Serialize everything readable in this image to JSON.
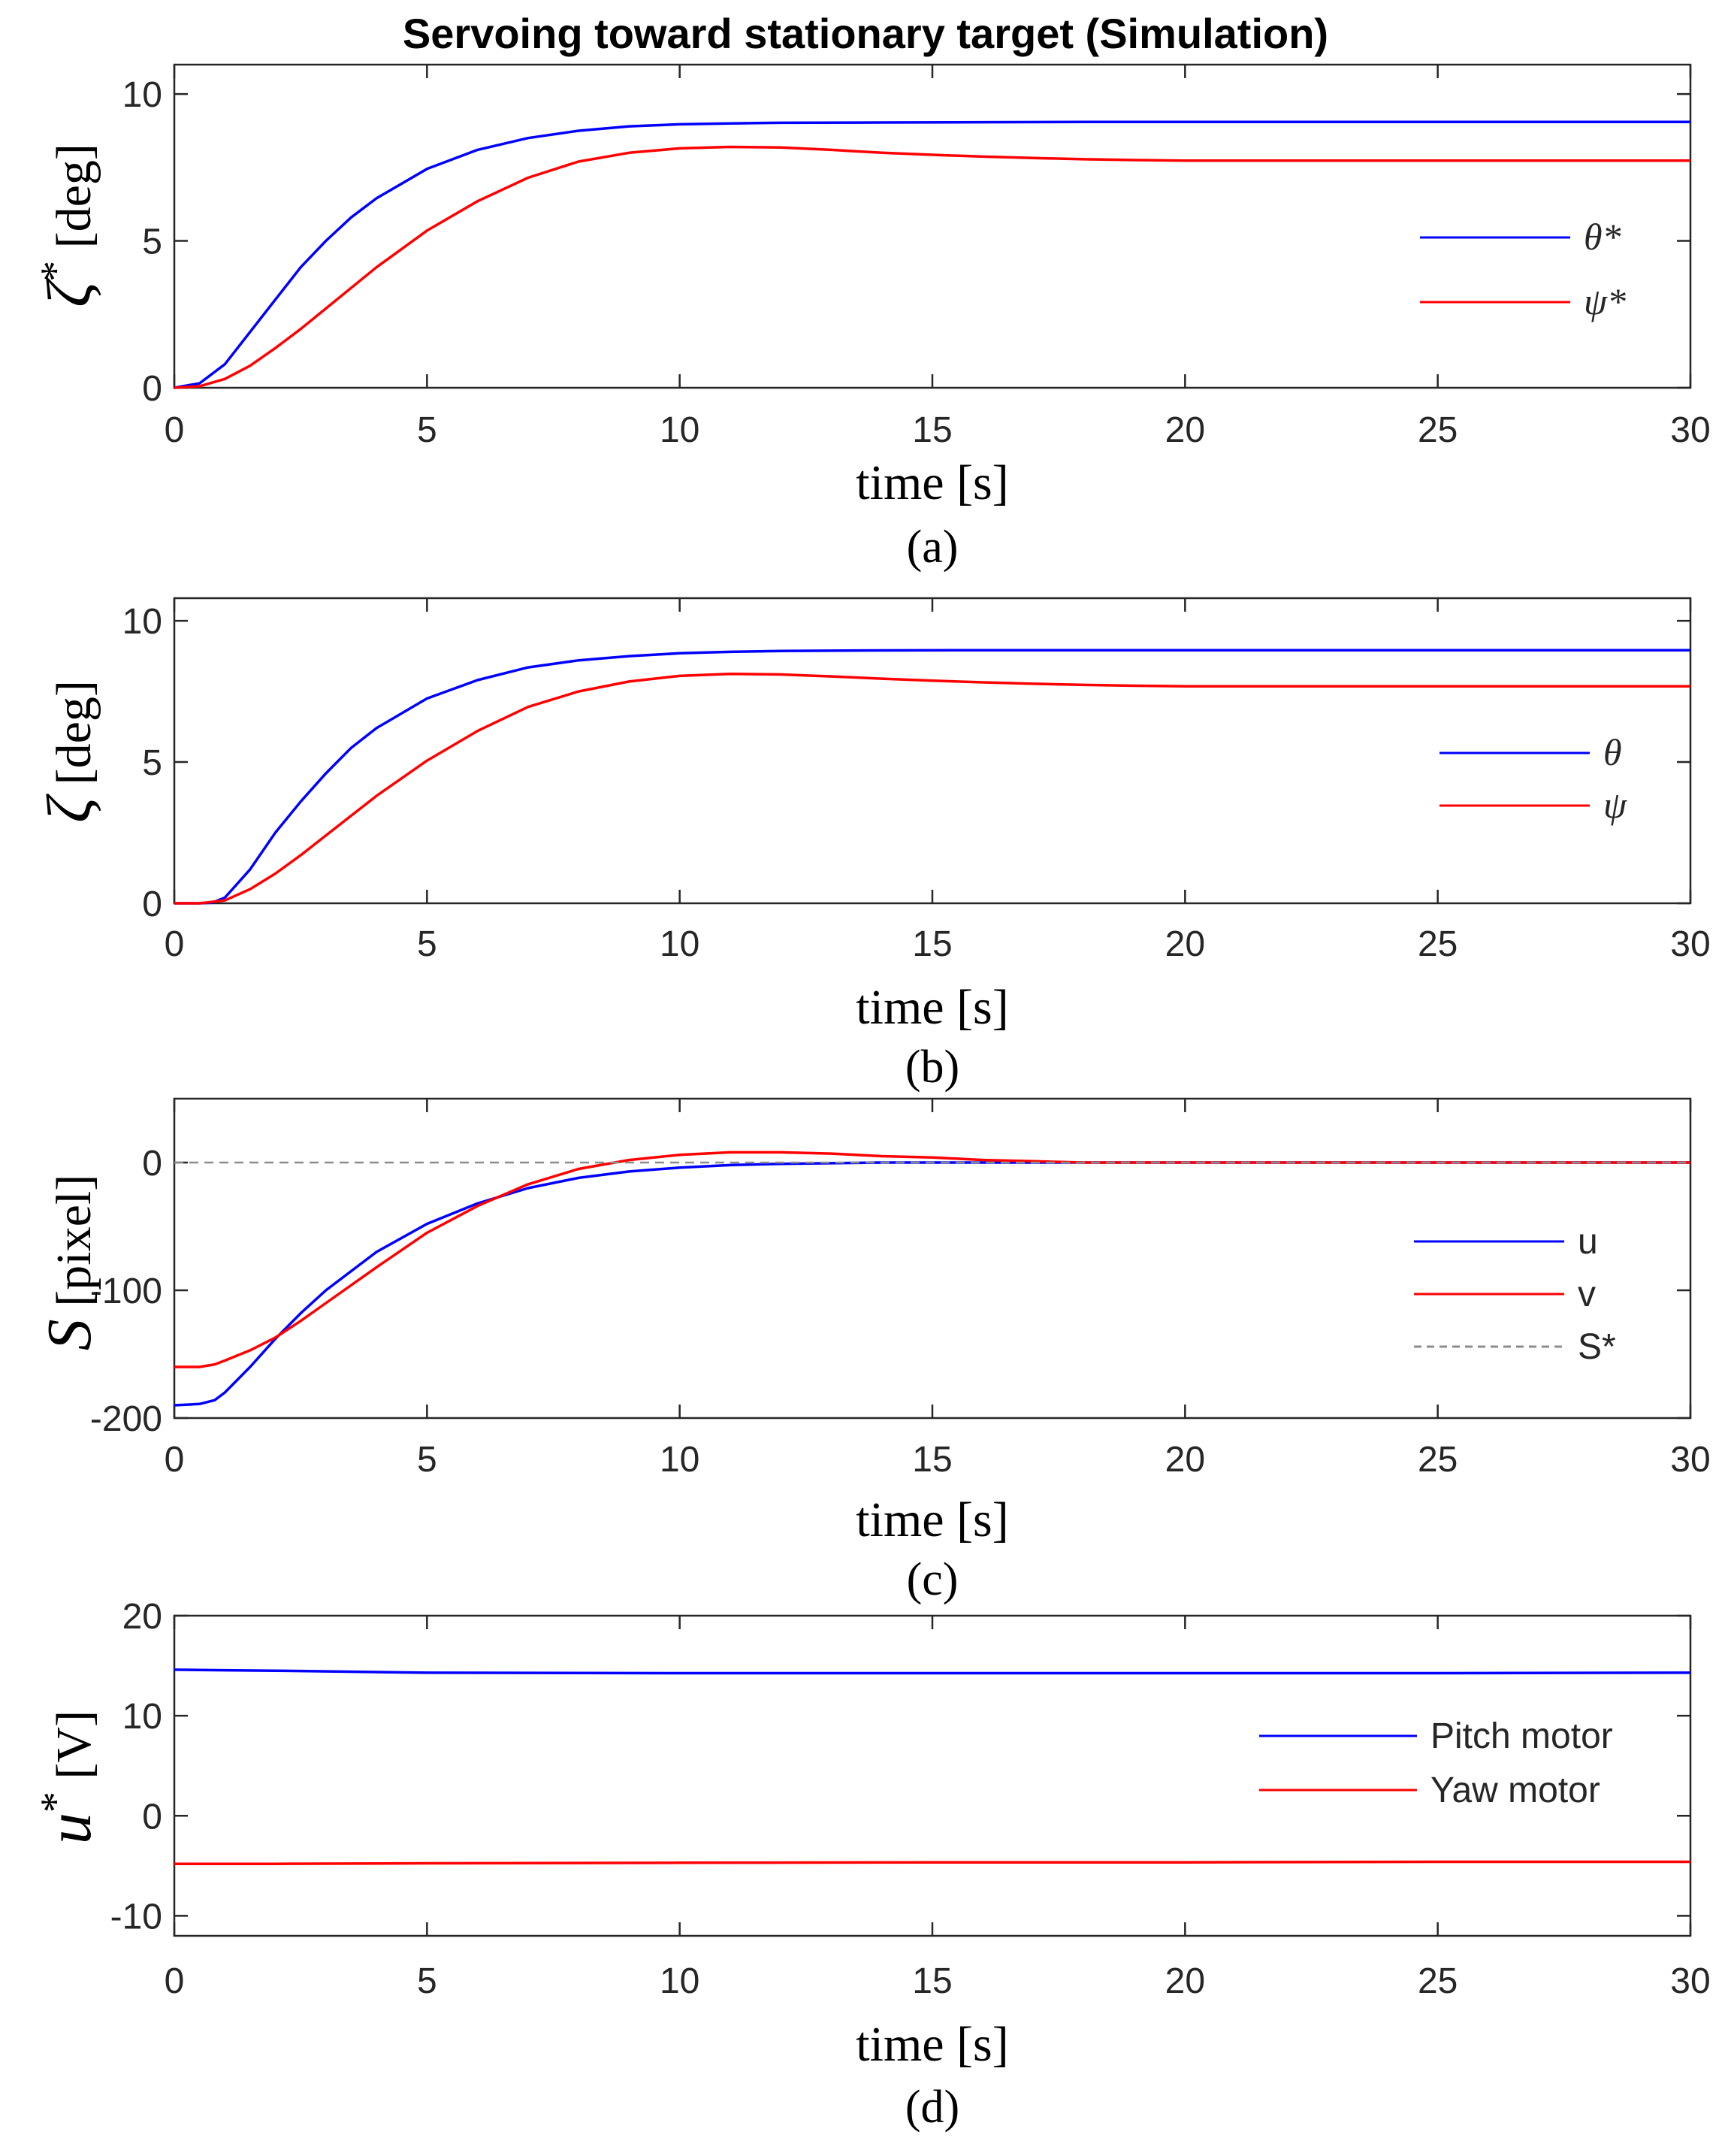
{
  "figure_title": "Servoing toward stationary target (Simulation)",
  "colors": {
    "blue": "#0000ff",
    "red": "#ff0000",
    "gray": "#8c8c8c",
    "axis": "#262626"
  },
  "chart_data": [
    {
      "id": "a",
      "type": "line",
      "caption": "(a)",
      "xlabel": "time [s]",
      "ylabel_symbol": "ζ",
      "ylabel_sup": "*",
      "ylabel_unit": "[deg]",
      "xlim": [
        0,
        30
      ],
      "ylim": [
        0,
        11
      ],
      "xticks": [
        0,
        5,
        10,
        15,
        20,
        25,
        30
      ],
      "xtick_labels": [
        "0",
        "5",
        "10",
        "15",
        "20",
        "25",
        "30"
      ],
      "yticks": [
        0,
        5,
        10
      ],
      "ytick_labels": [
        "0",
        "5",
        "10"
      ],
      "legend_pos": "right",
      "series": [
        {
          "name": "θ*",
          "color": "blue",
          "x": [
            0,
            0.5,
            1,
            1.5,
            2,
            2.5,
            3,
            3.5,
            4,
            5,
            6,
            7,
            8,
            9,
            10,
            11,
            12,
            14,
            16,
            18,
            20,
            25,
            30
          ],
          "y": [
            0,
            0.15,
            0.8,
            1.9,
            3.0,
            4.1,
            5.0,
            5.8,
            6.45,
            7.45,
            8.1,
            8.5,
            8.75,
            8.9,
            8.97,
            9.0,
            9.02,
            9.03,
            9.04,
            9.05,
            9.05,
            9.05,
            9.05
          ]
        },
        {
          "name": "ψ*",
          "color": "red",
          "x": [
            0,
            0.5,
            1,
            1.5,
            2,
            2.5,
            3,
            4,
            5,
            6,
            7,
            8,
            9,
            10,
            11,
            12,
            13,
            14,
            15,
            16,
            17,
            18,
            19,
            20,
            25,
            30
          ],
          "y": [
            0,
            0.05,
            0.3,
            0.75,
            1.35,
            2.0,
            2.7,
            4.1,
            5.35,
            6.35,
            7.15,
            7.7,
            8.0,
            8.15,
            8.2,
            8.18,
            8.1,
            8.0,
            7.93,
            7.87,
            7.82,
            7.78,
            7.75,
            7.73,
            7.73,
            7.73
          ]
        }
      ]
    },
    {
      "id": "b",
      "type": "line",
      "caption": "(b)",
      "xlabel": "time [s]",
      "ylabel_symbol": "ζ",
      "ylabel_sup": "",
      "ylabel_unit": "[deg]",
      "xlim": [
        0,
        30
      ],
      "ylim": [
        0,
        10.8
      ],
      "xticks": [
        0,
        5,
        10,
        15,
        20,
        25,
        30
      ],
      "xtick_labels": [
        "0",
        "5",
        "10",
        "15",
        "20",
        "25",
        "30"
      ],
      "yticks": [
        0,
        5,
        10
      ],
      "ytick_labels": [
        "0",
        "5",
        "10"
      ],
      "legend_pos": "right",
      "series": [
        {
          "name": "θ",
          "color": "blue",
          "x": [
            0,
            0.5,
            0.75,
            1,
            1.5,
            2,
            2.5,
            3,
            3.5,
            4,
            5,
            6,
            7,
            8,
            9,
            10,
            11,
            12,
            14,
            16,
            18,
            20,
            25,
            30
          ],
          "y": [
            0,
            0,
            0.02,
            0.2,
            1.2,
            2.5,
            3.6,
            4.6,
            5.5,
            6.2,
            7.25,
            7.9,
            8.35,
            8.6,
            8.75,
            8.85,
            8.9,
            8.93,
            8.95,
            8.96,
            8.96,
            8.96,
            8.96,
            8.96
          ]
        },
        {
          "name": "ψ",
          "color": "red",
          "x": [
            0,
            0.5,
            1,
            1.5,
            2,
            2.5,
            3,
            4,
            5,
            6,
            7,
            8,
            9,
            10,
            11,
            12,
            13,
            14,
            15,
            16,
            17,
            18,
            19,
            20,
            25,
            30
          ],
          "y": [
            0,
            0,
            0.1,
            0.5,
            1.05,
            1.7,
            2.4,
            3.8,
            5.05,
            6.1,
            6.95,
            7.5,
            7.85,
            8.05,
            8.12,
            8.1,
            8.03,
            7.95,
            7.88,
            7.82,
            7.77,
            7.73,
            7.7,
            7.68,
            7.68,
            7.68
          ]
        }
      ]
    },
    {
      "id": "c",
      "type": "line",
      "caption": "(c)",
      "xlabel": "time [s]",
      "ylabel_symbol": "S",
      "ylabel_sup": "",
      "ylabel_unit": "[pixel]",
      "xlim": [
        0,
        30
      ],
      "ylim": [
        -200,
        50
      ],
      "xticks": [
        0,
        5,
        10,
        15,
        20,
        25,
        30
      ],
      "xtick_labels": [
        "0",
        "5",
        "10",
        "15",
        "20",
        "25",
        "30"
      ],
      "yticks": [
        -200,
        -100,
        0
      ],
      "ytick_labels": [
        "-200",
        "-100",
        "0"
      ],
      "legend_pos": "right",
      "series": [
        {
          "name": "u",
          "color": "blue",
          "x": [
            0,
            0.5,
            0.8,
            1,
            1.5,
            2,
            2.5,
            3,
            4,
            5,
            6,
            7,
            8,
            9,
            10,
            11,
            12,
            14,
            16,
            18,
            20,
            25,
            30
          ],
          "y": [
            -190,
            -189,
            -186,
            -180,
            -160,
            -138,
            -118,
            -100,
            -70,
            -48,
            -32,
            -20,
            -12,
            -7,
            -4,
            -2,
            -1,
            0,
            0,
            0,
            0,
            0,
            0
          ]
        },
        {
          "name": "v",
          "color": "red",
          "x": [
            0,
            0.5,
            0.8,
            1,
            1.5,
            2,
            2.5,
            3,
            4,
            5,
            6,
            7,
            8,
            9,
            10,
            11,
            12,
            13,
            14,
            15,
            16,
            17,
            18,
            19,
            20,
            25,
            30
          ],
          "y": [
            -160,
            -160,
            -158,
            -155,
            -147,
            -137,
            -124,
            -110,
            -82,
            -55,
            -34,
            -17,
            -5,
            2,
            6,
            8,
            8,
            7,
            5,
            4,
            2,
            1,
            0,
            0,
            0,
            0,
            0
          ]
        },
        {
          "name": "S*",
          "color": "gray",
          "dashed": true,
          "x": [
            0,
            30
          ],
          "y": [
            0,
            0
          ]
        }
      ]
    },
    {
      "id": "d",
      "type": "line",
      "caption": "(d)",
      "xlabel": "time [s]",
      "ylabel_symbol": "u",
      "ylabel_sup": "*",
      "ylabel_unit": "[V]",
      "xlim": [
        0,
        30
      ],
      "ylim": [
        -12,
        20
      ],
      "xticks": [
        0,
        5,
        10,
        15,
        20,
        25,
        30
      ],
      "xtick_labels": [
        "0",
        "5",
        "10",
        "15",
        "20",
        "25",
        "30"
      ],
      "yticks": [
        -10,
        0,
        10,
        20
      ],
      "ytick_labels": [
        "-10",
        "0",
        "10",
        "20"
      ],
      "legend_pos": "right",
      "series": [
        {
          "name": "Pitch motor",
          "color": "blue",
          "x": [
            0,
            1,
            2,
            5,
            10,
            15,
            20,
            25,
            30
          ],
          "y": [
            14.6,
            14.55,
            14.5,
            14.3,
            14.25,
            14.25,
            14.25,
            14.25,
            14.3
          ]
        },
        {
          "name": "Yaw motor",
          "color": "red",
          "x": [
            0,
            2,
            5,
            10,
            15,
            20,
            25,
            30
          ],
          "y": [
            -4.8,
            -4.8,
            -4.75,
            -4.7,
            -4.65,
            -4.65,
            -4.6,
            -4.6
          ]
        }
      ]
    }
  ]
}
